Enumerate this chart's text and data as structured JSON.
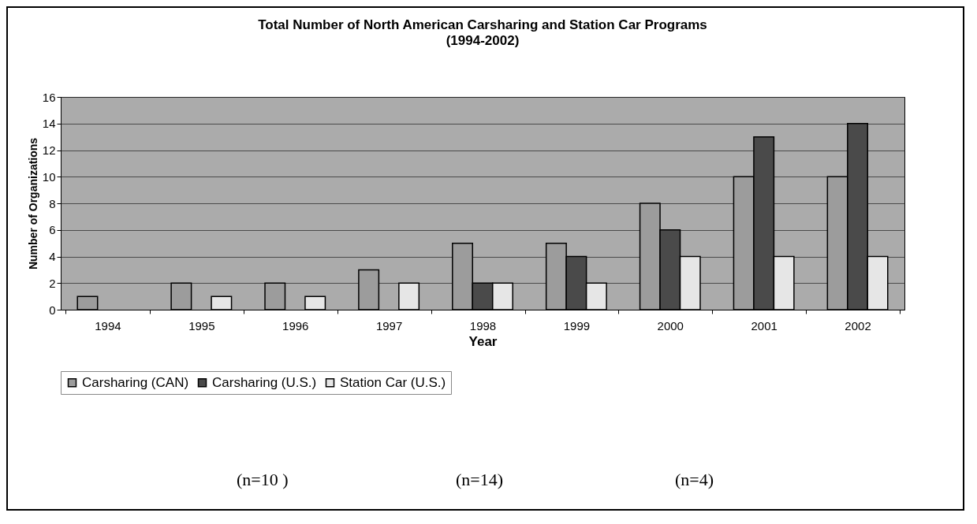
{
  "chart_data": {
    "type": "bar",
    "title": "Total Number of North American Carsharing and Station Car Programs",
    "subtitle": "(1994-2002)",
    "xlabel": "Year",
    "ylabel": "Number of Organizations",
    "categories": [
      "1994",
      "1995",
      "1996",
      "1997",
      "1998",
      "1999",
      "2000",
      "2001",
      "2002"
    ],
    "series": [
      {
        "name": "Carsharing (CAN)",
        "color": "#9c9c9c",
        "values": [
          1,
          2,
          2,
          3,
          5,
          5,
          8,
          10,
          10
        ]
      },
      {
        "name": "Carsharing (U.S.)",
        "color": "#4a4a4a",
        "values": [
          null,
          null,
          null,
          null,
          2,
          4,
          6,
          13,
          14
        ]
      },
      {
        "name": "Station Car (U.S.)",
        "color": "#e6e6e6",
        "values": [
          null,
          1,
          1,
          2,
          2,
          2,
          4,
          4,
          4
        ]
      }
    ],
    "ylim": [
      0,
      16
    ],
    "yticks": [
      0,
      2,
      4,
      6,
      8,
      10,
      12,
      14,
      16
    ],
    "grid": "y",
    "legend": "bottom",
    "annotations": [
      "(n=10 )",
      "(n=14)",
      "(n=4)"
    ]
  }
}
